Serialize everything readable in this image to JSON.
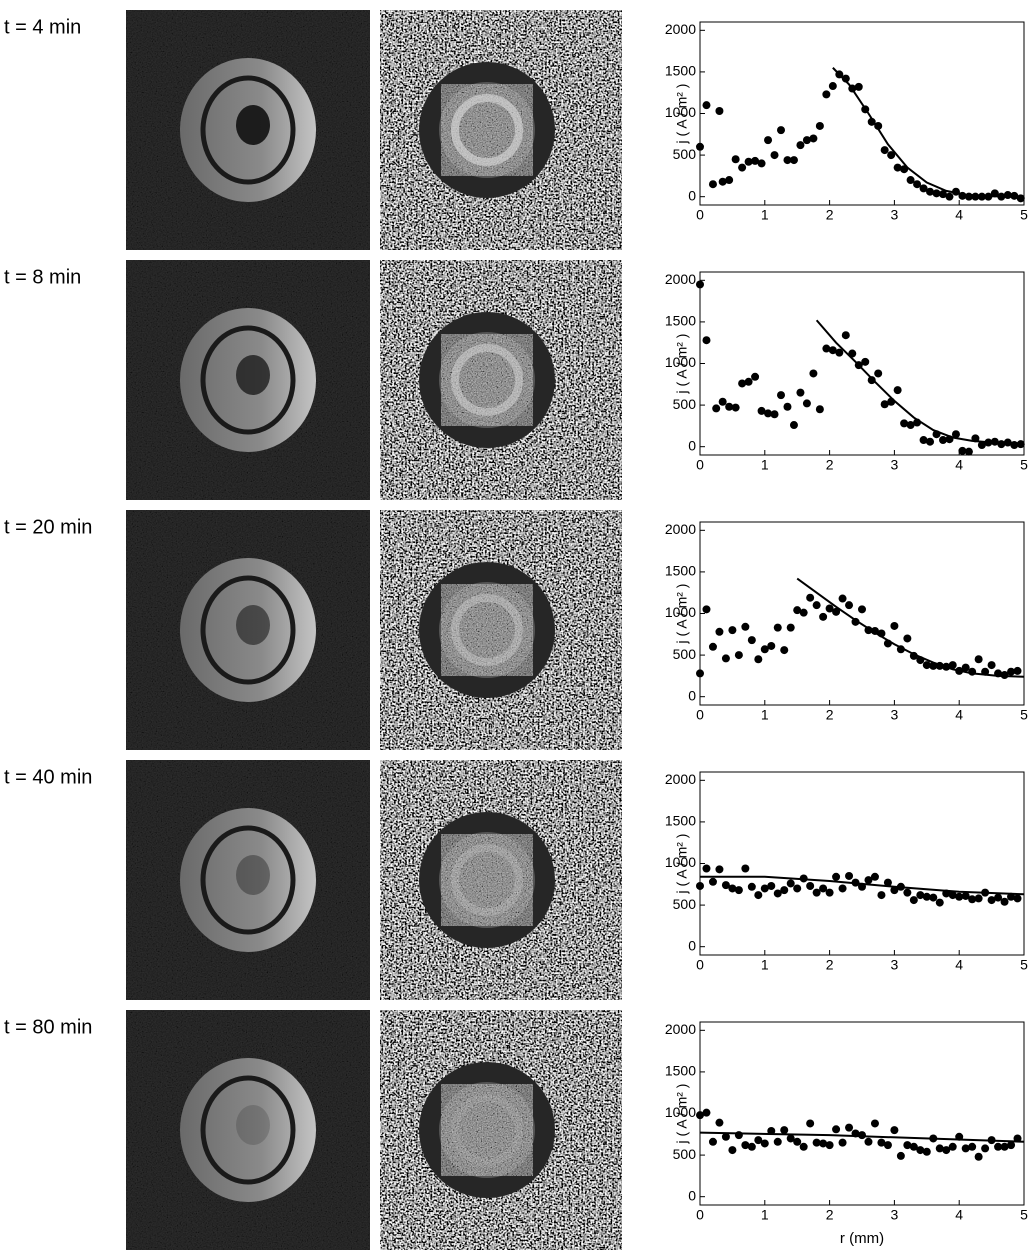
{
  "chart_data": [
    {
      "type": "scatter",
      "title": "t = 4 min",
      "ylabel": "j ( A / m² )",
      "xlim": [
        0,
        5
      ],
      "ylim": [
        -100,
        2100
      ],
      "xticks": [
        0,
        1,
        2,
        3,
        4,
        5
      ],
      "yticks": [
        0,
        500,
        1000,
        1500,
        2000
      ],
      "series": [
        {
          "type": "scatter",
          "color": "#000000",
          "x": [
            0,
            0.1,
            0.2,
            0.3,
            0.35,
            0.45,
            0.55,
            0.65,
            0.75,
            0.85,
            0.95,
            1.05,
            1.15,
            1.25,
            1.35,
            1.45,
            1.55,
            1.65,
            1.75,
            1.85,
            1.95,
            2.05,
            2.15,
            2.25,
            2.35,
            2.45,
            2.55,
            2.65,
            2.75,
            2.85,
            2.95,
            3.05,
            3.15,
            3.25,
            3.35,
            3.45,
            3.55,
            3.65,
            3.75,
            3.85,
            3.95,
            4.05,
            4.15,
            4.25,
            4.35,
            4.45,
            4.55,
            4.65,
            4.75,
            4.85,
            4.95
          ],
          "values": [
            600,
            1100,
            150,
            1030,
            180,
            200,
            450,
            350,
            420,
            430,
            400,
            680,
            500,
            800,
            440,
            440,
            620,
            680,
            700,
            850,
            1230,
            1330,
            1470,
            1420,
            1300,
            1320,
            1050,
            900,
            850,
            560,
            500,
            350,
            330,
            200,
            150,
            100,
            60,
            40,
            30,
            0,
            60,
            10,
            0,
            0,
            0,
            0,
            40,
            0,
            20,
            10,
            -20
          ]
        },
        {
          "type": "line",
          "color": "#000000",
          "x": [
            2.05,
            2.3,
            2.6,
            2.9,
            3.2,
            3.5,
            3.8,
            4.1,
            4.5,
            5
          ],
          "values": [
            1550,
            1350,
            1000,
            630,
            350,
            170,
            70,
            25,
            5,
            0
          ]
        }
      ]
    },
    {
      "type": "scatter",
      "title": "t = 8 min",
      "ylabel": "j ( A / m² )",
      "xlim": [
        0,
        5
      ],
      "ylim": [
        -100,
        2100
      ],
      "xticks": [
        0,
        1,
        2,
        3,
        4,
        5
      ],
      "yticks": [
        0,
        500,
        1000,
        1500,
        2000
      ],
      "series": [
        {
          "type": "scatter",
          "color": "#000000",
          "x": [
            0,
            0.1,
            0.25,
            0.35,
            0.45,
            0.55,
            0.65,
            0.75,
            0.85,
            0.95,
            1.05,
            1.15,
            1.25,
            1.35,
            1.45,
            1.55,
            1.65,
            1.75,
            1.85,
            1.95,
            2.05,
            2.15,
            2.25,
            2.35,
            2.45,
            2.55,
            2.65,
            2.75,
            2.85,
            2.95,
            3.05,
            3.15,
            3.25,
            3.35,
            3.45,
            3.55,
            3.65,
            3.75,
            3.85,
            3.95,
            4.05,
            4.15,
            4.25,
            4.35,
            4.45,
            4.55,
            4.65,
            4.75,
            4.85,
            4.95
          ],
          "values": [
            1950,
            1280,
            460,
            540,
            480,
            470,
            760,
            780,
            840,
            430,
            400,
            390,
            620,
            480,
            260,
            650,
            520,
            880,
            450,
            1180,
            1160,
            1130,
            1340,
            1120,
            980,
            1020,
            800,
            880,
            510,
            540,
            680,
            280,
            260,
            290,
            80,
            60,
            150,
            80,
            90,
            150,
            -50,
            -60,
            100,
            20,
            50,
            60,
            30,
            50,
            20,
            30
          ]
        },
        {
          "type": "line",
          "color": "#000000",
          "x": [
            1.8,
            2.1,
            2.4,
            2.7,
            3.0,
            3.3,
            3.6,
            3.9,
            4.2,
            4.6,
            5
          ],
          "values": [
            1520,
            1250,
            1020,
            780,
            550,
            350,
            200,
            110,
            70,
            45,
            40
          ]
        }
      ]
    },
    {
      "type": "scatter",
      "title": "t = 20 min",
      "ylabel": "j ( A / m² )",
      "xlim": [
        0,
        5
      ],
      "ylim": [
        -100,
        2100
      ],
      "xticks": [
        0,
        1,
        2,
        3,
        4,
        5
      ],
      "yticks": [
        0,
        500,
        1000,
        1500,
        2000
      ],
      "series": [
        {
          "type": "scatter",
          "color": "#000000",
          "x": [
            0,
            0.1,
            0.2,
            0.3,
            0.4,
            0.5,
            0.6,
            0.7,
            0.8,
            0.9,
            1.0,
            1.1,
            1.2,
            1.3,
            1.4,
            1.5,
            1.6,
            1.7,
            1.8,
            1.9,
            2.0,
            2.1,
            2.2,
            2.3,
            2.4,
            2.5,
            2.6,
            2.7,
            2.8,
            2.9,
            3.0,
            3.1,
            3.2,
            3.3,
            3.4,
            3.5,
            3.6,
            3.7,
            3.8,
            3.9,
            4.0,
            4.1,
            4.2,
            4.3,
            4.4,
            4.5,
            4.6,
            4.7,
            4.8,
            4.9
          ],
          "values": [
            280,
            1050,
            600,
            780,
            460,
            800,
            500,
            840,
            680,
            450,
            570,
            610,
            830,
            560,
            830,
            1040,
            1010,
            1190,
            1100,
            960,
            1060,
            1020,
            1180,
            1100,
            900,
            1050,
            800,
            790,
            760,
            640,
            850,
            570,
            700,
            490,
            440,
            380,
            370,
            370,
            360,
            380,
            310,
            350,
            300,
            450,
            300,
            380,
            280,
            260,
            300,
            310
          ]
        },
        {
          "type": "line",
          "color": "#000000",
          "x": [
            1.5,
            1.8,
            2.1,
            2.4,
            2.7,
            3.0,
            3.3,
            3.6,
            3.9,
            4.2,
            4.6,
            5
          ],
          "values": [
            1420,
            1250,
            1080,
            920,
            770,
            630,
            510,
            410,
            330,
            280,
            250,
            240
          ]
        }
      ]
    },
    {
      "type": "scatter",
      "title": "t = 40 min",
      "ylabel": "j ( A / m² )",
      "xlim": [
        0,
        5
      ],
      "ylim": [
        -100,
        2100
      ],
      "xticks": [
        0,
        1,
        2,
        3,
        4,
        5
      ],
      "yticks": [
        0,
        500,
        1000,
        1500,
        2000
      ],
      "series": [
        {
          "type": "scatter",
          "color": "#000000",
          "x": [
            0,
            0.1,
            0.2,
            0.3,
            0.4,
            0.5,
            0.6,
            0.7,
            0.8,
            0.9,
            1.0,
            1.1,
            1.2,
            1.3,
            1.4,
            1.5,
            1.6,
            1.7,
            1.8,
            1.9,
            2.0,
            2.1,
            2.2,
            2.3,
            2.4,
            2.5,
            2.6,
            2.7,
            2.8,
            2.9,
            3.0,
            3.1,
            3.2,
            3.3,
            3.4,
            3.5,
            3.6,
            3.7,
            3.8,
            3.9,
            4.0,
            4.1,
            4.2,
            4.3,
            4.4,
            4.5,
            4.6,
            4.7,
            4.8,
            4.9
          ],
          "values": [
            730,
            940,
            780,
            930,
            740,
            700,
            680,
            940,
            720,
            620,
            700,
            730,
            640,
            680,
            760,
            700,
            820,
            730,
            650,
            700,
            650,
            840,
            700,
            850,
            770,
            720,
            800,
            840,
            620,
            770,
            680,
            720,
            650,
            560,
            620,
            600,
            590,
            530,
            640,
            620,
            600,
            610,
            570,
            580,
            650,
            560,
            590,
            540,
            600,
            580
          ]
        },
        {
          "type": "line",
          "color": "#000000",
          "x": [
            0,
            1,
            2,
            3,
            4,
            5
          ],
          "values": [
            840,
            840,
            790,
            720,
            660,
            630
          ]
        }
      ]
    },
    {
      "type": "scatter",
      "title": "t = 80 min",
      "ylabel": "j ( A / m² )",
      "xlabel": "r (mm)",
      "xlim": [
        0,
        5
      ],
      "ylim": [
        -100,
        2100
      ],
      "xticks": [
        0,
        1,
        2,
        3,
        4,
        5
      ],
      "yticks": [
        0,
        500,
        1000,
        1500,
        2000
      ],
      "series": [
        {
          "type": "scatter",
          "color": "#000000",
          "x": [
            0,
            0.1,
            0.2,
            0.3,
            0.4,
            0.5,
            0.6,
            0.7,
            0.8,
            0.9,
            1.0,
            1.1,
            1.2,
            1.3,
            1.4,
            1.5,
            1.6,
            1.7,
            1.8,
            1.9,
            2.0,
            2.1,
            2.2,
            2.3,
            2.4,
            2.5,
            2.6,
            2.7,
            2.8,
            2.9,
            3.0,
            3.1,
            3.2,
            3.3,
            3.4,
            3.5,
            3.6,
            3.7,
            3.8,
            3.9,
            4.0,
            4.1,
            4.2,
            4.3,
            4.4,
            4.5,
            4.6,
            4.7,
            4.8,
            4.9
          ],
          "values": [
            980,
            1010,
            660,
            890,
            720,
            560,
            740,
            620,
            600,
            680,
            640,
            790,
            660,
            800,
            700,
            660,
            600,
            880,
            650,
            640,
            620,
            810,
            650,
            830,
            760,
            740,
            660,
            880,
            650,
            620,
            800,
            490,
            620,
            600,
            560,
            540,
            700,
            580,
            560,
            600,
            720,
            580,
            600,
            480,
            580,
            680,
            600,
            600,
            620,
            700
          ]
        },
        {
          "type": "line",
          "color": "#000000",
          "x": [
            0,
            2,
            5
          ],
          "values": [
            770,
            740,
            660
          ]
        }
      ]
    }
  ]
}
